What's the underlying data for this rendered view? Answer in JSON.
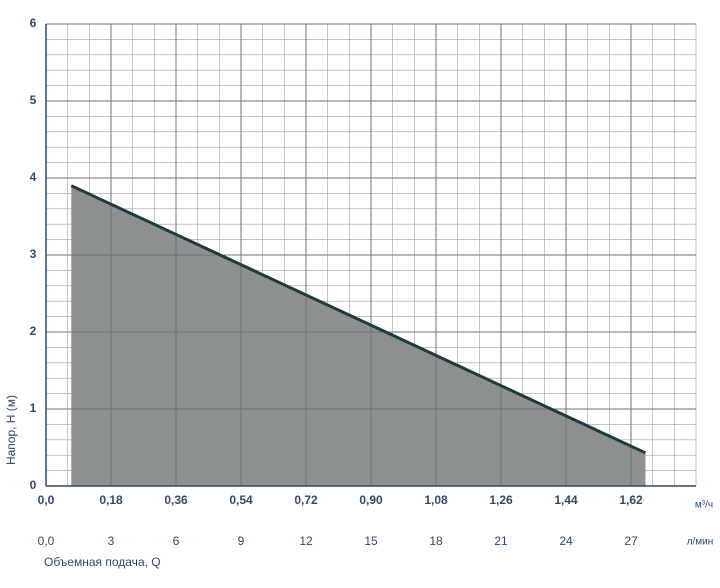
{
  "chart_data": {
    "type": "area",
    "y_label": "Напор, H (м)",
    "x_unit": "м³/ч",
    "x2_unit": "л/мин",
    "x2_label": "Объемная подача, Q",
    "xlim": [
      0,
      1.8
    ],
    "xticks": [
      {
        "value": 0,
        "label": "0,0"
      },
      {
        "value": 0.18,
        "label": "0,18"
      },
      {
        "value": 0.36,
        "label": "0,36"
      },
      {
        "value": 0.54,
        "label": "0,54"
      },
      {
        "value": 0.72,
        "label": "0,72"
      },
      {
        "value": 0.9,
        "label": "0,90"
      },
      {
        "value": 1.08,
        "label": "1,08"
      },
      {
        "value": 1.26,
        "label": "1,26"
      },
      {
        "value": 1.44,
        "label": "1,44"
      },
      {
        "value": 1.62,
        "label": "1,62"
      }
    ],
    "x2lim": [
      0,
      30
    ],
    "x2ticks": [
      {
        "value": 0,
        "label": "0,0"
      },
      3,
      6,
      9,
      12,
      15,
      18,
      21,
      24,
      27
    ],
    "ylim": [
      0,
      6
    ],
    "yticks": [
      0,
      1,
      2,
      3,
      4,
      5,
      6
    ],
    "grid": true,
    "series": [
      {
        "x": [
          0.07,
          1.66
        ],
        "values": [
          3.9,
          0.43
        ],
        "color": "#1f3a40",
        "fill": "#8c9090"
      }
    ]
  }
}
